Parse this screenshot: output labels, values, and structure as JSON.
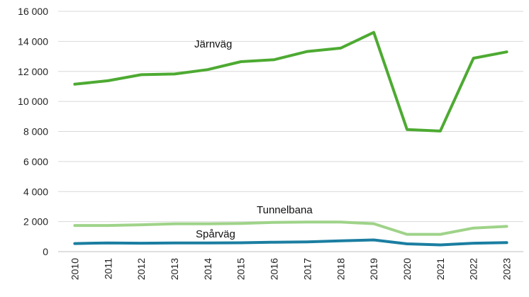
{
  "chart_data": {
    "type": "line",
    "title": "",
    "xlabel": "",
    "ylabel": "",
    "categories": [
      "2010",
      "2011",
      "2012",
      "2013",
      "2014",
      "2015",
      "2016",
      "2017",
      "2018",
      "2019",
      "2020",
      "2021",
      "2022",
      "2023"
    ],
    "ylim": [
      0,
      16000
    ],
    "yticks": [
      0,
      2000,
      4000,
      6000,
      8000,
      10000,
      12000,
      14000,
      16000
    ],
    "ytick_labels": [
      "0",
      "2 000",
      "4 000",
      "6 000",
      "8 000",
      "10 000",
      "12 000",
      "14 000",
      "16 000"
    ],
    "grid": true,
    "legend": "none",
    "series": [
      {
        "name": "Järnväg",
        "color": "#4daa32",
        "values": [
          11150,
          11380,
          11780,
          11830,
          12120,
          12650,
          12780,
          13330,
          13550,
          14600,
          8130,
          8030,
          12880,
          13300
        ]
      },
      {
        "name": "Tunnelbana",
        "color": "#9fd389",
        "values": [
          1740,
          1740,
          1790,
          1850,
          1850,
          1880,
          1950,
          1970,
          1970,
          1860,
          1150,
          1150,
          1570,
          1680
        ]
      },
      {
        "name": "Spårväg",
        "color": "#1b7ea1",
        "values": [
          540,
          580,
          560,
          580,
          580,
          590,
          630,
          650,
          720,
          780,
          520,
          450,
          560,
          600
        ]
      }
    ]
  }
}
